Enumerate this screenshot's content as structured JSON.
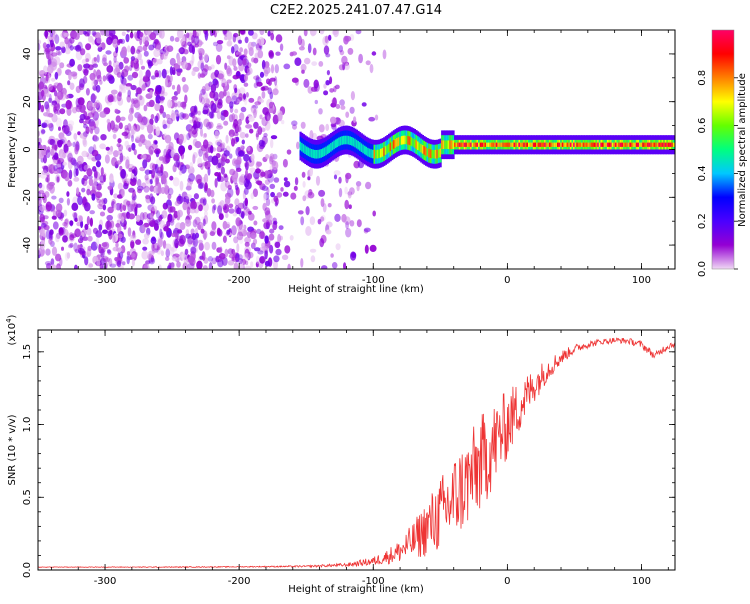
{
  "title": "C2E2.2025.241.07.47.G14",
  "chart_data": [
    {
      "type": "heatmap",
      "xlabel": "Height of straight line (km)",
      "ylabel": "Frequency (Hz)",
      "xlim": [
        -350,
        125
      ],
      "ylim": [
        -50,
        50
      ],
      "xticks": [
        -300,
        -200,
        -100,
        0,
        100
      ],
      "xticklabels": [
        "-300",
        "-200",
        "-100",
        "0",
        "100"
      ],
      "yticks": [
        -40,
        -20,
        0,
        20,
        40
      ],
      "yticklabels": [
        "-40",
        "-20",
        "0",
        "20",
        "40"
      ],
      "colorbar": {
        "label": "Normalized spectral amplitude",
        "range": [
          0,
          1
        ],
        "ticks": [
          0.0,
          0.2,
          0.4,
          0.6,
          0.8
        ],
        "ticklabels": [
          "0.0",
          "0.2",
          "0.4",
          "0.6",
          "0.8"
        ],
        "colors": [
          "#f0d8f4",
          "#9400d3",
          "#4b00ff",
          "#0000ff",
          "#00c8ff",
          "#00ff7f",
          "#64ff00",
          "#ffff00",
          "#ff8000",
          "#ff0000",
          "#ff0066"
        ]
      },
      "signal_band": {
        "x_start": -155,
        "x_end": 125,
        "center_frequency": 2
      },
      "noise_region": {
        "x_start": -350,
        "x_end": -100
      }
    },
    {
      "type": "line",
      "xlabel": "Height of straight line (km)",
      "ylabel": "SNR (10 * v/v)",
      "multiplier_label": "(x10",
      "multiplier_exp": "4",
      "multiplier_close": ")",
      "xlim": [
        -350,
        125
      ],
      "ylim": [
        0,
        16500
      ],
      "xticks": [
        -300,
        -200,
        -100,
        0,
        100
      ],
      "xticklabels": [
        "-300",
        "-200",
        "-100",
        "0",
        "100"
      ],
      "yticks": [
        0,
        5000,
        10000,
        15000
      ],
      "yticklabels": [
        "0.0",
        "0.5",
        "1.0",
        "1.5"
      ],
      "color": "#ee3333",
      "series": [
        {
          "name": "SNR",
          "x": [
            -350,
            -300,
            -250,
            -200,
            -150,
            -120,
            -100,
            -90,
            -80,
            -70,
            -60,
            -50,
            -40,
            -30,
            -20,
            -10,
            0,
            10,
            20,
            30,
            40,
            50,
            60,
            70,
            80,
            90,
            100,
            110,
            115,
            120,
            125
          ],
          "values": [
            200,
            200,
            200,
            220,
            250,
            350,
            600,
            900,
            1300,
            2000,
            2900,
            3800,
            4900,
            6000,
            7300,
            8600,
            10000,
            11400,
            12700,
            13800,
            14600,
            15200,
            15500,
            15700,
            15800,
            15750,
            15500,
            14700,
            15100,
            15400,
            15600
          ],
          "noise": [
            20,
            20,
            30,
            30,
            60,
            120,
            300,
            500,
            800,
            1300,
            2000,
            2600,
            3000,
            3200,
            3400,
            3000,
            2400,
            1800,
            1200,
            800,
            500,
            300,
            250,
            200,
            200,
            200,
            250,
            250,
            250,
            250,
            250
          ]
        }
      ]
    }
  ]
}
